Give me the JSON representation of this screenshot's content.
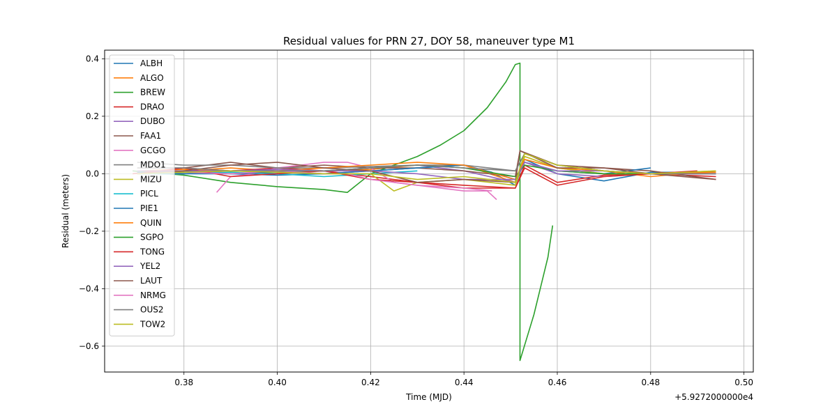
{
  "chart_data": {
    "type": "line",
    "title": "Residual values for PRN 27, DOY 58, maneuver type M1",
    "xlabel": "Time (MJD)",
    "ylabel": "Residual (meters)",
    "x_offset_label": "+5.9272000000e4",
    "xlim": [
      0.363,
      0.502
    ],
    "ylim": [
      -0.69,
      0.43
    ],
    "x_ticks": [
      0.38,
      0.4,
      0.42,
      0.44,
      0.46,
      0.48,
      0.5
    ],
    "x_tick_labels": [
      "0.38",
      "0.40",
      "0.42",
      "0.44",
      "0.46",
      "0.48",
      "0.50"
    ],
    "y_ticks": [
      0.4,
      0.2,
      0.0,
      -0.2,
      -0.4,
      -0.6
    ],
    "y_tick_labels": [
      "0.4",
      "0.2",
      "0.0",
      "−0.2",
      "−0.4",
      "−0.6"
    ],
    "grid": true,
    "legend_position": "upper-left",
    "series": [
      {
        "name": "ALBH",
        "color": "#1f77b4",
        "x": [
          0.37,
          0.38,
          0.39,
          0.4,
          0.41,
          0.42,
          0.43,
          0.44,
          0.446,
          0.451,
          0.453,
          0.46,
          0.47,
          0.48,
          0.494
        ],
        "y": [
          0.005,
          0.01,
          0.0,
          -0.005,
          0.0,
          0.01,
          0.02,
          0.03,
          0.005,
          -0.04,
          0.05,
          0.0,
          -0.025,
          0.005,
          0.005
        ]
      },
      {
        "name": "ALGO",
        "color": "#ff7f0e",
        "x": [
          0.37,
          0.38,
          0.39,
          0.4,
          0.41,
          0.42,
          0.43,
          0.44,
          0.451,
          0.453,
          0.46,
          0.47,
          0.48,
          0.494
        ],
        "y": [
          0.01,
          0.01,
          0.02,
          0.01,
          0.01,
          0.015,
          0.03,
          0.03,
          -0.03,
          0.06,
          0.02,
          0.0,
          0.0,
          0.005
        ]
      },
      {
        "name": "BREW",
        "color": "#2ca02c",
        "x": [
          0.369,
          0.38,
          0.39,
          0.4,
          0.41,
          0.415,
          0.42,
          0.43,
          0.435,
          0.44,
          0.445,
          0.449,
          0.451,
          0.452,
          0.452,
          0.455,
          0.458,
          0.459
        ],
        "y": [
          0.01,
          -0.005,
          -0.03,
          -0.045,
          -0.055,
          -0.065,
          0.0,
          0.06,
          0.1,
          0.15,
          0.23,
          0.32,
          0.38,
          0.385,
          -0.65,
          -0.49,
          -0.29,
          -0.18
        ]
      },
      {
        "name": "DRAO",
        "color": "#d62728",
        "x": [
          0.369,
          0.38,
          0.39,
          0.4,
          0.41,
          0.42,
          0.43,
          0.44,
          0.451,
          0.453,
          0.46,
          0.47,
          0.48,
          0.494
        ],
        "y": [
          0.0,
          0.02,
          0.01,
          0.02,
          0.01,
          -0.01,
          -0.03,
          -0.04,
          -0.05,
          0.03,
          -0.03,
          -0.005,
          0.0,
          -0.01
        ]
      },
      {
        "name": "DUBO",
        "color": "#9467bd",
        "x": [
          0.37,
          0.38,
          0.39,
          0.4,
          0.41,
          0.42,
          0.43,
          0.44,
          0.451,
          0.453,
          0.46,
          0.47,
          0.48,
          0.494
        ],
        "y": [
          0.0,
          0.0,
          0.01,
          0.015,
          0.01,
          0.02,
          0.03,
          0.01,
          -0.03,
          0.04,
          0.0,
          -0.01,
          0.0,
          0.0
        ]
      },
      {
        "name": "FAA1",
        "color": "#8c564b",
        "x": [
          0.37,
          0.38,
          0.39,
          0.4,
          0.41,
          0.42,
          0.43,
          0.44,
          0.451,
          0.452,
          0.46,
          0.47,
          0.48,
          0.494
        ],
        "y": [
          0.02,
          0.02,
          0.04,
          0.02,
          0.03,
          0.02,
          0.02,
          0.01,
          -0.01,
          0.08,
          0.03,
          0.02,
          0.01,
          -0.02
        ]
      },
      {
        "name": "GCGO",
        "color": "#e377c2",
        "x": [
          0.387,
          0.39,
          0.395,
          0.4,
          0.405,
          0.41,
          0.415,
          0.42,
          0.425,
          0.43,
          0.435,
          0.44,
          0.445,
          0.447
        ],
        "y": [
          -0.065,
          -0.01,
          0.0,
          0.02,
          0.03,
          0.04,
          0.04,
          0.02,
          -0.03,
          -0.04,
          -0.05,
          -0.06,
          -0.06,
          -0.09
        ]
      },
      {
        "name": "MDO1",
        "color": "#7f7f7f",
        "x": [
          0.37,
          0.38,
          0.39,
          0.4,
          0.41,
          0.42,
          0.43,
          0.44,
          0.451,
          0.453,
          0.46,
          0.47,
          0.48,
          0.494
        ],
        "y": [
          0.04,
          0.03,
          0.03,
          0.02,
          0.02,
          0.025,
          0.03,
          0.03,
          0.01,
          0.07,
          0.03,
          0.01,
          0.0,
          0.0
        ]
      },
      {
        "name": "MIZU",
        "color": "#bcbd22",
        "x": [
          0.37,
          0.38,
          0.39,
          0.4,
          0.41,
          0.42,
          0.425,
          0.43,
          0.44,
          0.451,
          0.453,
          0.46,
          0.47,
          0.48,
          0.494
        ],
        "y": [
          0.0,
          0.005,
          0.01,
          0.01,
          0.0,
          0.0,
          -0.06,
          -0.03,
          -0.02,
          -0.04,
          0.06,
          0.02,
          0.0,
          0.0,
          0.01
        ]
      },
      {
        "name": "PICL",
        "color": "#17becf",
        "x": [
          0.37,
          0.38,
          0.39,
          0.4,
          0.41,
          0.42,
          0.43
        ],
        "y": [
          0.0,
          0.0,
          0.005,
          0.0,
          -0.01,
          0.0,
          0.01
        ]
      },
      {
        "name": "PIE1",
        "color": "#1f77b4",
        "x": [
          0.37,
          0.38,
          0.39,
          0.4,
          0.41,
          0.42,
          0.43,
          0.44,
          0.451,
          0.453,
          0.46,
          0.47,
          0.48
        ],
        "y": [
          0.005,
          0.0,
          0.0,
          0.005,
          0.0,
          0.01,
          0.02,
          0.03,
          -0.02,
          0.04,
          0.01,
          0.0,
          0.02
        ]
      },
      {
        "name": "QUIN",
        "color": "#ff7f0e",
        "x": [
          0.37,
          0.38,
          0.39,
          0.4,
          0.41,
          0.42,
          0.43,
          0.44,
          0.451,
          0.453,
          0.46,
          0.47,
          0.48,
          0.494
        ],
        "y": [
          0.01,
          0.015,
          0.01,
          0.01,
          0.02,
          0.03,
          0.04,
          0.03,
          -0.02,
          0.05,
          0.02,
          0.01,
          -0.01,
          0.01
        ]
      },
      {
        "name": "SGPO",
        "color": "#2ca02c",
        "x": [
          0.37,
          0.38,
          0.39,
          0.4,
          0.41,
          0.42,
          0.43,
          0.44,
          0.451,
          0.453,
          0.46,
          0.47,
          0.48
        ],
        "y": [
          0.0,
          0.005,
          0.01,
          0.005,
          0.01,
          0.02,
          0.03,
          0.02,
          -0.01,
          0.03,
          0.01,
          0.0,
          0.0
        ]
      },
      {
        "name": "TONG",
        "color": "#d62728",
        "x": [
          0.37,
          0.38,
          0.39,
          0.4,
          0.41,
          0.42,
          0.43,
          0.44,
          0.451,
          0.453,
          0.46,
          0.47,
          0.48,
          0.49
        ],
        "y": [
          0.0,
          0.02,
          -0.01,
          0.0,
          0.01,
          -0.02,
          -0.03,
          -0.05,
          -0.05,
          0.02,
          -0.04,
          -0.01,
          0.0,
          0.01
        ]
      },
      {
        "name": "YEL2",
        "color": "#9467bd",
        "x": [
          0.37,
          0.38,
          0.39,
          0.4,
          0.41,
          0.42,
          0.43,
          0.44,
          0.451,
          0.453,
          0.46,
          0.47,
          0.48,
          0.494
        ],
        "y": [
          0.01,
          0.01,
          0.01,
          0.015,
          0.01,
          0.01,
          0.0,
          -0.02,
          -0.02,
          0.04,
          0.01,
          0.01,
          0.0,
          0.0
        ]
      },
      {
        "name": "LAUT",
        "color": "#8c564b",
        "x": [
          0.37,
          0.38,
          0.39,
          0.4,
          0.41,
          0.42,
          0.43,
          0.44,
          0.451,
          0.452,
          0.46,
          0.47,
          0.48,
          0.494
        ],
        "y": [
          0.0,
          0.01,
          0.03,
          0.04,
          0.02,
          0.01,
          -0.03,
          -0.02,
          -0.03,
          0.08,
          0.02,
          0.02,
          0.0,
          -0.02
        ]
      },
      {
        "name": "NRMG",
        "color": "#e377c2",
        "x": [
          0.37,
          0.38,
          0.39,
          0.4,
          0.41,
          0.415,
          0.42,
          0.43,
          0.44,
          0.446
        ],
        "y": [
          0.0,
          0.005,
          0.0,
          0.01,
          0.0,
          0.0,
          -0.02,
          -0.04,
          -0.05,
          -0.06
        ]
      },
      {
        "name": "OUS2",
        "color": "#7f7f7f",
        "x": [
          0.37,
          0.38,
          0.39,
          0.4,
          0.41,
          0.42,
          0.43,
          0.44,
          0.451,
          0.453,
          0.46,
          0.47,
          0.48,
          0.494
        ],
        "y": [
          0.02,
          0.02,
          0.01,
          0.01,
          0.01,
          0.02,
          0.03,
          0.02,
          0.01,
          0.07,
          0.03,
          0.01,
          0.0,
          0.0
        ]
      },
      {
        "name": "TOW2",
        "color": "#bcbd22",
        "x": [
          0.37,
          0.38,
          0.39,
          0.4,
          0.41,
          0.42,
          0.43,
          0.44,
          0.451,
          0.453,
          0.46,
          0.47,
          0.48,
          0.494
        ],
        "y": [
          0.0,
          0.005,
          0.01,
          0.005,
          0.0,
          0.0,
          -0.02,
          -0.01,
          -0.03,
          0.07,
          0.03,
          0.01,
          0.0,
          0.01
        ]
      }
    ]
  }
}
